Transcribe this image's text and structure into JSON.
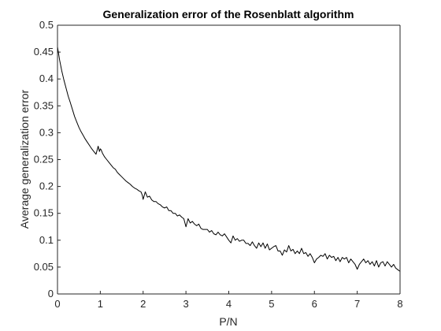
{
  "chart_data": {
    "type": "line",
    "title": "Generalization error of the Rosenblatt algorithm",
    "xlabel": "P/N",
    "ylabel": "Average generalization error",
    "xlim": [
      0,
      8
    ],
    "ylim": [
      0,
      0.5
    ],
    "xticks": [
      0,
      1,
      2,
      3,
      4,
      5,
      6,
      7,
      8
    ],
    "yticks": [
      0,
      0.05,
      0.1,
      0.15,
      0.2,
      0.25,
      0.3,
      0.35,
      0.4,
      0.45,
      0.5
    ],
    "xtick_labels": [
      "0",
      "1",
      "2",
      "3",
      "4",
      "5",
      "6",
      "7",
      "8"
    ],
    "ytick_labels": [
      "0",
      "0.05",
      "0.1",
      "0.15",
      "0.2",
      "0.25",
      "0.3",
      "0.35",
      "0.4",
      "0.45",
      "0.5"
    ],
    "grid": false,
    "legend": "none",
    "line_color": "#000000",
    "series": [
      {
        "x": [
          0,
          0.05,
          0.1,
          0.15,
          0.2,
          0.25,
          0.3,
          0.35,
          0.4,
          0.45,
          0.5,
          0.55,
          0.6,
          0.65,
          0.7,
          0.75,
          0.8,
          0.85,
          0.9,
          0.95,
          0.98,
          1.0,
          1.02,
          1.05,
          1.1,
          1.15,
          1.2,
          1.25,
          1.3,
          1.35,
          1.4,
          1.45,
          1.5,
          1.55,
          1.6,
          1.65,
          1.7,
          1.75,
          1.8,
          1.85,
          1.9,
          1.95,
          1.98,
          2.0,
          2.05,
          2.1,
          2.15,
          2.2,
          2.25,
          2.3,
          2.35,
          2.4,
          2.45,
          2.5,
          2.55,
          2.6,
          2.65,
          2.7,
          2.75,
          2.8,
          2.85,
          2.9,
          2.95,
          3.0,
          3.05,
          3.1,
          3.15,
          3.2,
          3.25,
          3.3,
          3.35,
          3.4,
          3.45,
          3.5,
          3.55,
          3.6,
          3.65,
          3.7,
          3.75,
          3.8,
          3.85,
          3.9,
          3.95,
          4.0,
          4.05,
          4.1,
          4.15,
          4.2,
          4.25,
          4.3,
          4.35,
          4.4,
          4.45,
          4.5,
          4.55,
          4.6,
          4.65,
          4.7,
          4.75,
          4.8,
          4.85,
          4.9,
          4.95,
          5.0,
          5.05,
          5.1,
          5.15,
          5.2,
          5.25,
          5.3,
          5.35,
          5.4,
          5.45,
          5.5,
          5.55,
          5.6,
          5.65,
          5.7,
          5.75,
          5.8,
          5.85,
          5.9,
          5.95,
          6.0,
          6.05,
          6.1,
          6.15,
          6.2,
          6.25,
          6.3,
          6.35,
          6.4,
          6.45,
          6.5,
          6.55,
          6.6,
          6.65,
          6.7,
          6.75,
          6.8,
          6.85,
          6.9,
          6.95,
          7.0,
          7.05,
          7.1,
          7.15,
          7.2,
          7.25,
          7.3,
          7.35,
          7.4,
          7.45,
          7.5,
          7.55,
          7.6,
          7.65,
          7.7,
          7.75,
          7.8,
          7.85,
          7.9,
          7.95,
          8.0
        ],
        "values": [
          0.46,
          0.435,
          0.415,
          0.398,
          0.383,
          0.368,
          0.356,
          0.343,
          0.33,
          0.32,
          0.31,
          0.302,
          0.295,
          0.288,
          0.282,
          0.276,
          0.27,
          0.265,
          0.26,
          0.275,
          0.265,
          0.27,
          0.268,
          0.262,
          0.255,
          0.25,
          0.245,
          0.24,
          0.235,
          0.232,
          0.226,
          0.222,
          0.218,
          0.214,
          0.21,
          0.207,
          0.204,
          0.2,
          0.197,
          0.195,
          0.192,
          0.19,
          0.184,
          0.176,
          0.19,
          0.18,
          0.182,
          0.175,
          0.172,
          0.172,
          0.168,
          0.166,
          0.162,
          0.16,
          0.162,
          0.155,
          0.155,
          0.15,
          0.15,
          0.145,
          0.147,
          0.143,
          0.14,
          0.125,
          0.14,
          0.132,
          0.135,
          0.13,
          0.127,
          0.13,
          0.122,
          0.12,
          0.12,
          0.12,
          0.115,
          0.118,
          0.112,
          0.11,
          0.115,
          0.11,
          0.108,
          0.112,
          0.106,
          0.1,
          0.095,
          0.108,
          0.1,
          0.103,
          0.098,
          0.1,
          0.1,
          0.094,
          0.094,
          0.09,
          0.097,
          0.09,
          0.085,
          0.095,
          0.088,
          0.095,
          0.085,
          0.093,
          0.082,
          0.085,
          0.088,
          0.09,
          0.08,
          0.08,
          0.072,
          0.082,
          0.078,
          0.09,
          0.08,
          0.083,
          0.075,
          0.08,
          0.075,
          0.085,
          0.075,
          0.077,
          0.07,
          0.075,
          0.068,
          0.058,
          0.065,
          0.068,
          0.072,
          0.07,
          0.075,
          0.065,
          0.072,
          0.068,
          0.07,
          0.062,
          0.068,
          0.06,
          0.068,
          0.065,
          0.068,
          0.058,
          0.065,
          0.06,
          0.055,
          0.046,
          0.055,
          0.06,
          0.065,
          0.058,
          0.062,
          0.055,
          0.06,
          0.052,
          0.062,
          0.05,
          0.058,
          0.06,
          0.052,
          0.06,
          0.055,
          0.05,
          0.055,
          0.048,
          0.045,
          0.042
        ]
      }
    ]
  }
}
